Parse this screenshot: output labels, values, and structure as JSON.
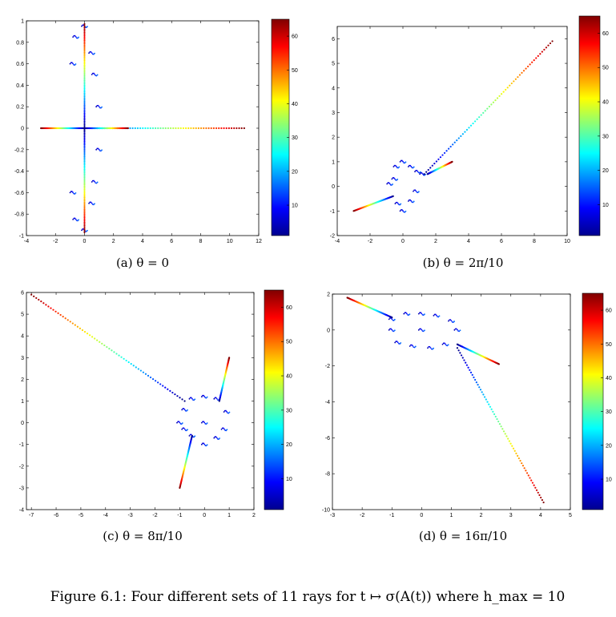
{
  "figure_caption": "Figure 6.1:   Four different sets of 11 rays for t ↦ σ(A(t)) where h_max = 10",
  "chart_data": [
    {
      "type": "scatter",
      "caption": "(a)    θ = 0",
      "xlim": [
        -4,
        12
      ],
      "ylim": [
        -1,
        1
      ],
      "xticks": [
        -4,
        -2,
        0,
        2,
        4,
        6,
        8,
        10,
        12
      ],
      "xtick_labels": [
        "-4",
        "-2",
        "0",
        "2",
        "4",
        "6",
        "8",
        "10",
        "12"
      ],
      "yticks": [
        -1,
        -0.8,
        -0.6,
        -0.4,
        -0.2,
        0,
        0.2,
        0.4,
        0.6,
        0.8,
        1
      ],
      "ytick_labels": [
        "-1",
        "-0.8",
        "-0.6",
        "-0.4",
        "-0.2",
        "0",
        "0.2",
        "0.4",
        "0.6",
        "0.8",
        "1"
      ],
      "colorbar": {
        "range": [
          1,
          65
        ],
        "ticks": [
          10,
          20,
          30,
          40,
          50,
          60
        ],
        "tick_labels": [
          "10",
          "20",
          "30",
          "40",
          "50",
          "60"
        ],
        "colormap": "jet"
      },
      "rays": [
        {
          "from": [
            0,
            0
          ],
          "to": [
            11,
            0
          ]
        },
        {
          "from": [
            0,
            0
          ],
          "to": [
            -3,
            0
          ]
        },
        {
          "from": [
            0,
            0
          ],
          "to": [
            3,
            0
          ]
        },
        {
          "from": [
            0,
            0
          ],
          "to": [
            0,
            0.97
          ]
        },
        {
          "from": [
            0,
            0
          ],
          "to": [
            0,
            -0.97
          ]
        }
      ],
      "clusters": [
        [
          -0.8,
          0.6
        ],
        [
          -0.6,
          0.85
        ],
        [
          0,
          0.95
        ],
        [
          0.5,
          0.7
        ],
        [
          0.7,
          0.5
        ],
        [
          1,
          0.2
        ],
        [
          -0.8,
          -0.6
        ],
        [
          -0.6,
          -0.85
        ],
        [
          0,
          -0.95
        ],
        [
          0.5,
          -0.7
        ],
        [
          0.7,
          -0.5
        ],
        [
          1,
          -0.2
        ]
      ]
    },
    {
      "type": "scatter",
      "caption": "(b)    θ = 2π/10",
      "xlim": [
        -4,
        10
      ],
      "ylim": [
        -2,
        6.5
      ],
      "xticks": [
        -4,
        -2,
        0,
        2,
        4,
        6,
        8,
        10
      ],
      "xtick_labels": [
        "-4",
        "-2",
        "0",
        "2",
        "4",
        "6",
        "8",
        "10"
      ],
      "yticks": [
        -2,
        -1,
        0,
        1,
        2,
        3,
        4,
        5,
        6
      ],
      "ytick_labels": [
        "-2",
        "-1",
        "0",
        "1",
        "2",
        "3",
        "4",
        "5",
        "6"
      ],
      "colorbar": {
        "range": [
          1,
          65
        ],
        "ticks": [
          10,
          20,
          30,
          40,
          50,
          60
        ],
        "tick_labels": [
          "10",
          "20",
          "30",
          "40",
          "50",
          "60"
        ],
        "colormap": "jet"
      },
      "rays": [
        {
          "from": [
            1.3,
            0.5
          ],
          "to": [
            9.1,
            5.9
          ]
        },
        {
          "from": [
            -0.6,
            -0.4
          ],
          "to": [
            -3,
            -1
          ]
        },
        {
          "from": [
            1.5,
            0.5
          ],
          "to": [
            3,
            1
          ]
        }
      ],
      "clusters": [
        [
          -0.4,
          0.8
        ],
        [
          0,
          1
        ],
        [
          0.5,
          0.8
        ],
        [
          0.9,
          0.6
        ],
        [
          1.2,
          0.5
        ],
        [
          -0.3,
          -0.7
        ],
        [
          0,
          -1
        ],
        [
          0.5,
          -0.6
        ],
        [
          0.8,
          -0.2
        ],
        [
          -0.8,
          0.1
        ],
        [
          -0.5,
          0.3
        ]
      ]
    },
    {
      "type": "scatter",
      "caption": "(c)    θ = 8π/10",
      "xlim": [
        -7.2,
        2
      ],
      "ylim": [
        -4,
        6
      ],
      "xticks": [
        -7,
        -6,
        -5,
        -4,
        -3,
        -2,
        -1,
        0,
        1,
        2
      ],
      "xtick_labels": [
        "-7",
        "-6",
        "-5",
        "-4",
        "-3",
        "-2",
        "-1",
        "0",
        "1",
        "2"
      ],
      "yticks": [
        -4,
        -3,
        -2,
        -1,
        0,
        1,
        2,
        3,
        4,
        5,
        6
      ],
      "ytick_labels": [
        "-4",
        "-3",
        "-2",
        "-1",
        "0",
        "1",
        "2",
        "3",
        "4",
        "5",
        "6"
      ],
      "colorbar": {
        "range": [
          1,
          65
        ],
        "ticks": [
          10,
          20,
          30,
          40,
          50,
          60
        ],
        "tick_labels": [
          "10",
          "20",
          "30",
          "40",
          "50",
          "60"
        ],
        "colormap": "jet"
      },
      "rays": [
        {
          "from": [
            -0.8,
            1
          ],
          "to": [
            -7,
            5.9
          ]
        },
        {
          "from": [
            0.6,
            1
          ],
          "to": [
            1,
            3
          ]
        },
        {
          "from": [
            -0.5,
            -0.6
          ],
          "to": [
            -1,
            -3
          ]
        }
      ],
      "clusters": [
        [
          -0.8,
          0.6
        ],
        [
          -0.5,
          1.1
        ],
        [
          0,
          1.2
        ],
        [
          0.5,
          1.1
        ],
        [
          0.9,
          0.5
        ],
        [
          0.8,
          -0.3
        ],
        [
          0.5,
          -0.7
        ],
        [
          0,
          -1
        ],
        [
          -0.5,
          -0.6
        ],
        [
          -0.8,
          -0.3
        ],
        [
          -1,
          0
        ],
        [
          0,
          0
        ]
      ]
    },
    {
      "type": "scatter",
      "caption": "(d)    θ = 16π/10",
      "xlim": [
        -3,
        5
      ],
      "ylim": [
        -10,
        2
      ],
      "xticks": [
        -3,
        -2,
        -1,
        0,
        1,
        2,
        3,
        4,
        5
      ],
      "xtick_labels": [
        "-3",
        "-2",
        "-1",
        "0",
        "1",
        "2",
        "3",
        "4",
        "5"
      ],
      "yticks": [
        -10,
        -8,
        -6,
        -4,
        -2,
        0,
        2
      ],
      "ytick_labels": [
        "-10",
        "-8",
        "-6",
        "-4",
        "-2",
        "0",
        "2"
      ],
      "colorbar": {
        "range": [
          1,
          65
        ],
        "ticks": [
          10,
          20,
          30,
          40,
          50,
          60
        ],
        "tick_labels": [
          "10",
          "20",
          "30",
          "40",
          "50",
          "60"
        ],
        "colormap": "jet"
      },
      "rays": [
        {
          "from": [
            -1,
            0.7
          ],
          "to": [
            -2.5,
            1.8
          ]
        },
        {
          "from": [
            1.2,
            -0.8
          ],
          "to": [
            2.6,
            -1.9
          ]
        },
        {
          "from": [
            1.2,
            -1
          ],
          "to": [
            4.1,
            -9.6
          ]
        }
      ],
      "clusters": [
        [
          -1,
          0.6
        ],
        [
          -0.5,
          0.9
        ],
        [
          0,
          0.9
        ],
        [
          0.5,
          0.8
        ],
        [
          1,
          0.5
        ],
        [
          1.2,
          0
        ],
        [
          0.8,
          -0.8
        ],
        [
          0.3,
          -1
        ],
        [
          -0.3,
          -0.9
        ],
        [
          -0.8,
          -0.7
        ],
        [
          -1,
          0
        ],
        [
          0,
          0
        ]
      ]
    }
  ]
}
